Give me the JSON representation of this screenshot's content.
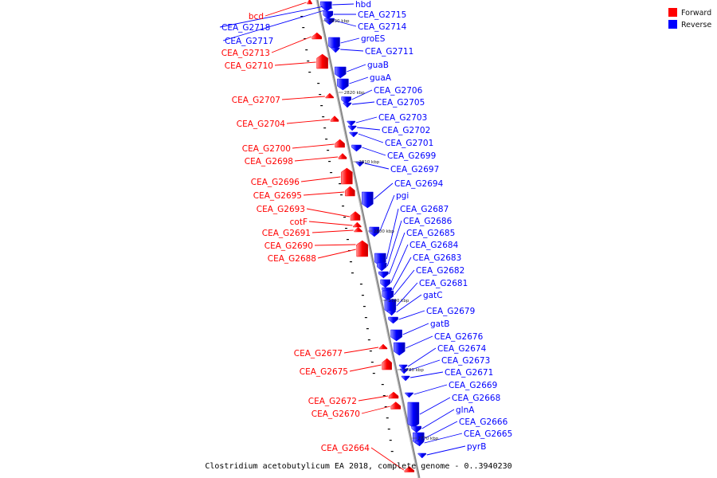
{
  "title": "Clostridium acetobutylicum EA 2018, complete genome - 0..3940230",
  "legend": [
    {
      "name": "Forward",
      "color": "#ff0000"
    },
    {
      "name": "Reverse",
      "color": "#0000ff"
    }
  ],
  "ticks": [
    "2830 kbp",
    "2820 kbp",
    "2810 kbp",
    "2800 kbp",
    "2790 kbp",
    "2780 kbp",
    "2770 kbp"
  ],
  "forward_genes": [
    "bcd",
    "CEA_G2713",
    "CEA_G2710",
    "CEA_G2707",
    "CEA_G2704",
    "CEA_G2700",
    "CEA_G2698",
    "CEA_G2696",
    "CEA_G2695",
    "CEA_G2693",
    "cotF",
    "CEA_G2691",
    "CEA_G2690",
    "CEA_G2688",
    "CEA_G2677",
    "CEA_G2675",
    "CEA_G2672",
    "CEA_G2670",
    "CEA_G2664"
  ],
  "reverse_genes": [
    "CEA_G2718",
    "CEA_G2717",
    "hbd",
    "CEA_G2715",
    "CEA_G2714",
    "groES",
    "CEA_G2711",
    "guaB",
    "guaA",
    "CEA_G2706",
    "CEA_G2705",
    "CEA_G2703",
    "CEA_G2702",
    "CEA_G2701",
    "CEA_G2699",
    "CEA_G2697",
    "CEA_G2694",
    "pgi",
    "CEA_G2687",
    "CEA_G2686",
    "CEA_G2685",
    "CEA_G2684",
    "CEA_G2683",
    "CEA_G2682",
    "CEA_G2681",
    "gatC",
    "CEA_G2679",
    "gatB",
    "CEA_G2676",
    "CEA_G2674",
    "CEA_G2673",
    "CEA_G2671",
    "CEA_G2669",
    "CEA_G2668",
    "glnA",
    "CEA_G2666",
    "CEA_G2665",
    "pyrB"
  ]
}
